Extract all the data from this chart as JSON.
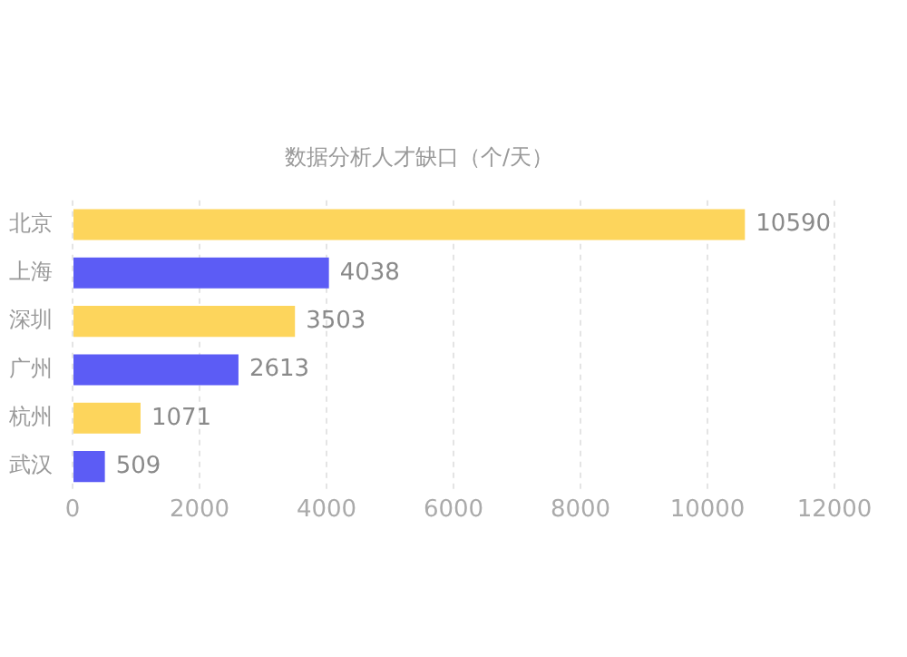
{
  "chart_data": {
    "type": "bar",
    "orientation": "horizontal",
    "title": "数据分析人才缺口（个/天）",
    "categories": [
      "北京",
      "上海",
      "深圳",
      "广州",
      "杭州",
      "武汉"
    ],
    "values": [
      10590,
      4038,
      3503,
      2613,
      1071,
      509
    ],
    "colors": [
      "#fdd55c",
      "#5c5cf5",
      "#fdd55c",
      "#5c5cf5",
      "#fdd55c",
      "#5c5cf5"
    ],
    "xlim": [
      0,
      12000
    ],
    "xticks": [
      0,
      2000,
      4000,
      6000,
      8000,
      10000,
      12000
    ],
    "grid": "x",
    "data_labels": true,
    "legend": false
  }
}
